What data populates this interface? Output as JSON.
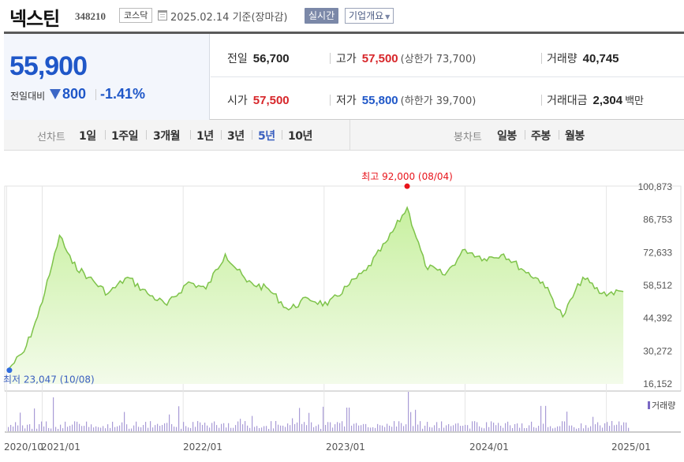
{
  "header": {
    "name": "넥스틴",
    "code": "348210",
    "market": "코스닥",
    "date": "2025.02.14 기준(장마감)",
    "realtime": "실시간",
    "company": "기업개요"
  },
  "quote": {
    "price": "55,900",
    "change_label": "전일대비",
    "change_value": "800",
    "change_rate": "-1.41%",
    "prev_label": "전일",
    "prev_value": "56,700",
    "high_label": "고가",
    "high_value": "57,500",
    "upper_limit": "(상한가 73,700)",
    "volume_label": "거래량",
    "volume_value": "40,745",
    "open_label": "시가",
    "open_value": "57,500",
    "low_label": "저가",
    "low_value": "55,800",
    "lower_limit": "(하한가 39,700)",
    "amount_label": "거래대금",
    "amount_value": "2,304",
    "amount_unit": "백만"
  },
  "periods": {
    "line_label": "선차트",
    "line_items": [
      "1일",
      "1주일",
      "3개월",
      "1년",
      "3년",
      "5년",
      "10년"
    ],
    "active": "5년",
    "candle_label": "봉차트",
    "candle_items": [
      "일봉",
      "주봉",
      "월봉"
    ]
  },
  "chart_data": {
    "type": "area",
    "ylim": [
      16152,
      100873
    ],
    "y_ticks": [
      "100,873",
      "86,753",
      "72,633",
      "58,512",
      "44,392",
      "30,272",
      "16,152"
    ],
    "x_ticks": [
      "2020/10",
      "2021/01",
      "2022/01",
      "2023/01",
      "2024/01",
      "2025/01"
    ],
    "x": [
      "2020-10-08",
      "2020-11-15",
      "2020-12-20",
      "2021-01-20",
      "2021-02-15",
      "2021-03-20",
      "2021-05-01",
      "2021-06-20",
      "2021-08-10",
      "2021-10-01",
      "2021-11-20",
      "2022-01-15",
      "2022-03-01",
      "2022-04-20",
      "2022-06-15",
      "2022-08-10",
      "2022-10-01",
      "2022-11-20",
      "2023-01-10",
      "2023-03-01",
      "2023-04-20",
      "2023-06-15",
      "2023-08-04",
      "2023-09-20",
      "2023-11-10",
      "2024-01-01",
      "2024-02-20",
      "2024-04-10",
      "2024-06-01",
      "2024-07-20",
      "2024-09-10",
      "2024-11-01",
      "2024-12-20",
      "2025-02-14"
    ],
    "values": [
      23047,
      30000,
      45000,
      63000,
      80000,
      68000,
      62000,
      55000,
      62000,
      55000,
      50000,
      60000,
      57000,
      72000,
      60000,
      57000,
      48000,
      53000,
      50000,
      58000,
      65000,
      78000,
      92000,
      67000,
      63000,
      74000,
      70000,
      72000,
      65000,
      60000,
      45000,
      62000,
      55000,
      55900
    ],
    "volume_series": "거래량",
    "max_label": "최고 92,000 (08/04)",
    "min_label": "최저 23,047 (10/08)",
    "colors": {
      "line": "#7ec34a",
      "fill_top": "#c8f0a0",
      "fill_bottom": "#f3fbea",
      "max_dot": "#e8141b",
      "min_dot": "#2f6be0",
      "volume": "#a89bd6"
    }
  }
}
